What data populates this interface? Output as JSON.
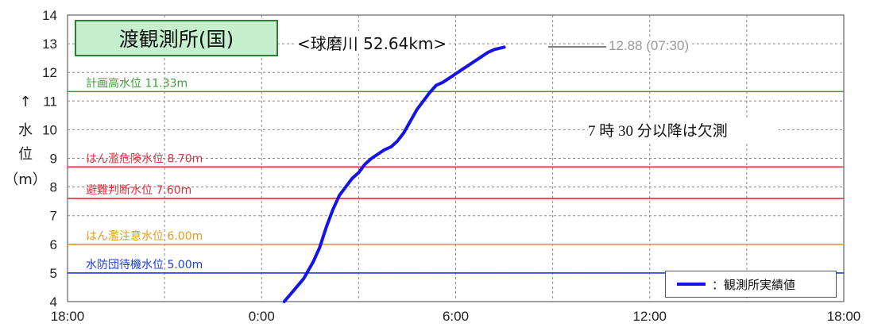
{
  "chart_data": {
    "type": "line",
    "title": "渡観測所(国)",
    "subtitle": "<球磨川 52.64km>",
    "ylabel": "↑水位（m）",
    "ylabel_parts": [
      "↑",
      "水",
      "位",
      "（m）"
    ],
    "ylim": [
      4,
      14
    ],
    "yticks": [
      "4",
      "5",
      "6",
      "7",
      "8",
      "9",
      "10",
      "11",
      "12",
      "13",
      "14"
    ],
    "xticks": [
      "18:00",
      "0:00",
      "6:00",
      "12:00",
      "18:00"
    ],
    "xlim_hours": [
      -6,
      18
    ],
    "grid": true,
    "series": [
      {
        "name": "：観測所実績値",
        "color": "#1414e6",
        "x_hours": [
          0.7,
          1.0,
          1.3,
          1.6,
          1.8,
          2.0,
          2.2,
          2.4,
          2.6,
          2.8,
          3.0,
          3.2,
          3.4,
          3.6,
          3.8,
          4.0,
          4.2,
          4.4,
          4.6,
          4.8,
          5.0,
          5.2,
          5.4,
          5.6,
          5.8,
          6.0,
          6.2,
          6.4,
          6.6,
          6.8,
          7.0,
          7.2,
          7.5
        ],
        "y": [
          4.0,
          4.4,
          4.8,
          5.4,
          5.9,
          6.6,
          7.2,
          7.7,
          8.0,
          8.3,
          8.5,
          8.8,
          9.0,
          9.15,
          9.3,
          9.4,
          9.6,
          9.9,
          10.3,
          10.7,
          11.0,
          11.3,
          11.55,
          11.65,
          11.8,
          11.95,
          12.1,
          12.25,
          12.4,
          12.55,
          12.7,
          12.8,
          12.88
        ]
      }
    ],
    "reference_lines": [
      {
        "label": "計画高水位 11.33m",
        "value": 11.33,
        "color": "#3a9d3a"
      },
      {
        "label": "はん濫危険水位 8.70m",
        "value": 8.7,
        "color": "#e0303c"
      },
      {
        "label": "避難判断水位 7.60m",
        "value": 7.6,
        "color": "#e0303c"
      },
      {
        "label": "はん濫注意水位 6.00m",
        "value": 6.0,
        "color": "#e89a1a"
      },
      {
        "label": "水防団待機水位 5.00m",
        "value": 5.0,
        "color": "#1a3ee0"
      }
    ],
    "annotations": {
      "last_value": "12.88 (07:30)",
      "note": "7 時 30 分以降は欠測"
    },
    "legend": {
      "position": "bottom-right",
      "label": "：観測所実績値"
    }
  }
}
